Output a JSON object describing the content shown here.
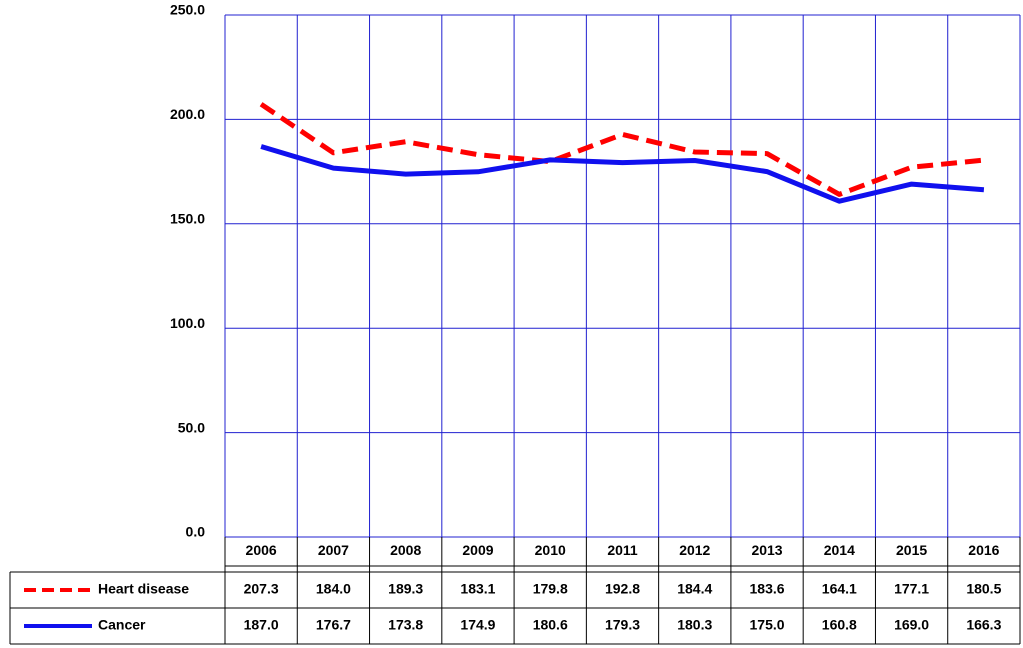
{
  "chart_data": {
    "type": "line",
    "categories": [
      "2006",
      "2007",
      "2008",
      "2009",
      "2010",
      "2011",
      "2012",
      "2013",
      "2014",
      "2015",
      "2016"
    ],
    "series": [
      {
        "name": "Heart disease",
        "color": "#ff0000",
        "dashed": true,
        "values": [
          207.3,
          184.0,
          189.3,
          183.1,
          179.8,
          192.8,
          184.4,
          183.6,
          164.1,
          177.1,
          180.5
        ],
        "value_labels": [
          "207.3",
          "184.0",
          "189.3",
          "183.1",
          "179.8",
          "192.8",
          "184.4",
          "183.6",
          "164.1",
          "177.1",
          "180.5"
        ]
      },
      {
        "name": "Cancer",
        "color": "#1010ee",
        "dashed": false,
        "values": [
          187.0,
          176.7,
          173.8,
          174.9,
          180.6,
          179.3,
          180.3,
          175.0,
          160.8,
          169.0,
          166.3
        ],
        "value_labels": [
          "187.0",
          "176.7",
          "173.8",
          "174.9",
          "180.6",
          "179.3",
          "180.3",
          "175.0",
          "160.8",
          "169.0",
          "166.3"
        ]
      }
    ],
    "ylim": [
      0,
      250
    ],
    "yticks": [
      {
        "value": 0,
        "label": "0.0"
      },
      {
        "value": 50,
        "label": "50.0"
      },
      {
        "value": 100,
        "label": "100.0"
      },
      {
        "value": 150,
        "label": "150.0"
      },
      {
        "value": 200,
        "label": "200.0"
      },
      {
        "value": 250,
        "label": "250.0"
      }
    ],
    "grid": true,
    "grid_color": "#2020d0"
  }
}
